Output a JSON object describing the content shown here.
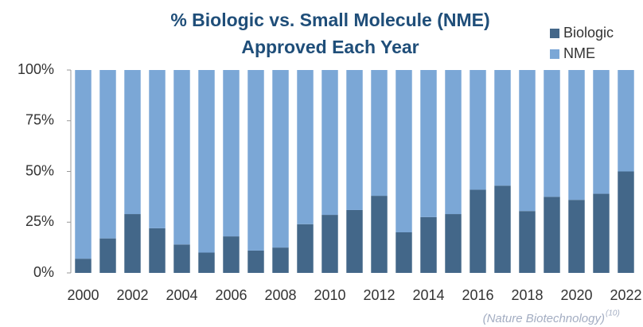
{
  "chart_data": {
    "type": "stacked_bar",
    "title": [
      "% Biologic vs. Small Molecule (NME)",
      "Approved Each Year"
    ],
    "categories": [
      "2000",
      null,
      "2002",
      null,
      "2004",
      null,
      "2006",
      null,
      "2008",
      null,
      "2010",
      null,
      "2012",
      null,
      "2014",
      null,
      "2016",
      null,
      "2018",
      null,
      "2020",
      null,
      "2022"
    ],
    "series": [
      {
        "name": "Biologic",
        "color": "#436789",
        "values": [
          7,
          17,
          29,
          22,
          14,
          10,
          18,
          11,
          12.5,
          24,
          28.6,
          31,
          38,
          20,
          27.5,
          29,
          41,
          43,
          30.5,
          37.5,
          36,
          39,
          50
        ]
      },
      {
        "name": "NME",
        "color": "#7ba7d6",
        "values": [
          93,
          83,
          71,
          78,
          86,
          90,
          82,
          89,
          87.5,
          76,
          71.4,
          69,
          62,
          80,
          72.5,
          71,
          59,
          57,
          69.5,
          62.5,
          64,
          61,
          50
        ]
      }
    ],
    "ylim": [
      0,
      100
    ],
    "yticks": [
      {
        "value": 0,
        "label": "0%"
      },
      {
        "value": 25,
        "label": "25%"
      },
      {
        "value": 50,
        "label": "50%"
      },
      {
        "value": 75,
        "label": "75%"
      },
      {
        "value": 100,
        "label": "100%"
      }
    ],
    "legend": "top-right",
    "note": "(Nature Biotechnology)",
    "note_ref": "(10)"
  }
}
